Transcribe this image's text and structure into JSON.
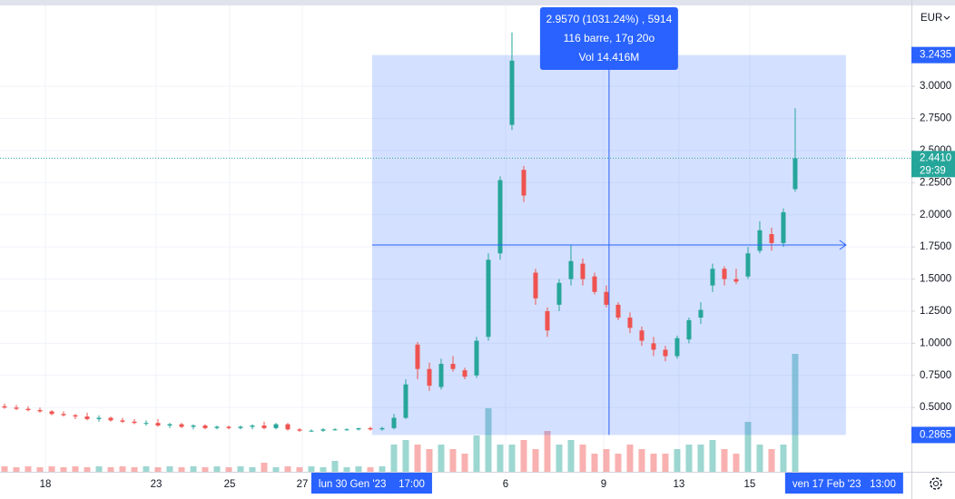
{
  "chart_data": {
    "type": "candlestick",
    "currency": "EUR",
    "x": [
      0,
      1,
      2,
      3,
      4,
      5,
      6,
      7,
      8,
      9,
      10,
      11,
      12,
      13,
      14,
      15,
      16,
      17,
      18,
      19,
      20,
      21,
      22,
      23,
      24,
      25,
      26,
      27,
      28,
      29,
      30,
      31,
      32,
      33,
      34,
      35,
      36,
      37,
      38,
      39,
      40,
      41,
      42,
      43,
      44,
      45,
      46,
      47,
      48,
      49,
      50,
      51,
      52,
      53,
      54,
      55,
      56,
      57,
      58,
      59,
      60,
      61,
      62,
      63,
      64,
      65,
      66,
      67
    ],
    "open": [
      0.51,
      0.5,
      0.49,
      0.48,
      0.47,
      0.45,
      0.44,
      0.43,
      0.41,
      0.42,
      0.4,
      0.39,
      0.38,
      0.38,
      0.36,
      0.37,
      0.35,
      0.36,
      0.34,
      0.35,
      0.34,
      0.35,
      0.36,
      0.34,
      0.37,
      0.33,
      0.32,
      0.32,
      0.33,
      0.33,
      0.33,
      0.34,
      0.33,
      0.34,
      0.42,
      0.99,
      0.8,
      0.66,
      0.84,
      0.79,
      0.75,
      1.05,
      1.7,
      2.7,
      2.35,
      1.55,
      1.25,
      1.3,
      1.5,
      1.62,
      1.52,
      1.4,
      1.3,
      1.2,
      1.1,
      1.0,
      0.95,
      0.9,
      1.03,
      1.2,
      1.45,
      1.58,
      1.5,
      1.52,
      1.72,
      1.85,
      1.78,
      2.2
    ],
    "high": [
      0.53,
      0.52,
      0.51,
      0.5,
      0.48,
      0.47,
      0.45,
      0.46,
      0.44,
      0.43,
      0.42,
      0.41,
      0.4,
      0.41,
      0.38,
      0.38,
      0.37,
      0.37,
      0.36,
      0.36,
      0.36,
      0.37,
      0.39,
      0.38,
      0.38,
      0.34,
      0.33,
      0.34,
      0.34,
      0.34,
      0.34,
      0.35,
      0.35,
      0.45,
      0.72,
      1.01,
      0.85,
      0.88,
      0.9,
      0.81,
      1.05,
      1.7,
      2.3,
      3.42,
      2.38,
      1.58,
      1.28,
      1.5,
      1.77,
      1.66,
      1.55,
      1.45,
      1.32,
      1.24,
      1.13,
      1.05,
      0.98,
      1.06,
      1.2,
      1.32,
      1.62,
      1.6,
      1.58,
      1.75,
      1.95,
      1.9,
      2.05,
      2.83
    ],
    "low": [
      0.49,
      0.48,
      0.47,
      0.46,
      0.44,
      0.43,
      0.41,
      0.4,
      0.39,
      0.39,
      0.38,
      0.37,
      0.36,
      0.35,
      0.34,
      0.34,
      0.33,
      0.33,
      0.33,
      0.33,
      0.33,
      0.33,
      0.33,
      0.33,
      0.32,
      0.31,
      0.31,
      0.31,
      0.32,
      0.32,
      0.32,
      0.32,
      0.32,
      0.33,
      0.41,
      0.72,
      0.63,
      0.64,
      0.78,
      0.72,
      0.73,
      1.02,
      1.65,
      2.66,
      2.1,
      1.3,
      1.05,
      1.25,
      1.45,
      1.45,
      1.38,
      1.28,
      1.18,
      1.08,
      0.98,
      0.9,
      0.86,
      0.88,
      1.0,
      1.15,
      1.4,
      1.45,
      1.46,
      1.5,
      1.7,
      1.72,
      1.75,
      2.18
    ],
    "close": [
      0.5,
      0.49,
      0.48,
      0.47,
      0.45,
      0.44,
      0.43,
      0.41,
      0.42,
      0.4,
      0.39,
      0.38,
      0.38,
      0.36,
      0.37,
      0.35,
      0.36,
      0.34,
      0.35,
      0.34,
      0.35,
      0.36,
      0.34,
      0.37,
      0.33,
      0.32,
      0.32,
      0.33,
      0.33,
      0.33,
      0.34,
      0.33,
      0.34,
      0.42,
      0.68,
      0.8,
      0.67,
      0.84,
      0.8,
      0.74,
      1.02,
      1.65,
      2.27,
      3.2,
      2.15,
      1.35,
      1.1,
      1.47,
      1.64,
      1.5,
      1.4,
      1.3,
      1.2,
      1.12,
      1.02,
      0.95,
      0.9,
      1.04,
      1.18,
      1.26,
      1.58,
      1.5,
      1.48,
      1.7,
      1.88,
      1.78,
      2.02,
      2.44
    ],
    "volume": [
      0.06,
      0.05,
      0.06,
      0.05,
      0.06,
      0.05,
      0.06,
      0.05,
      0.06,
      0.05,
      0.06,
      0.05,
      0.06,
      0.05,
      0.06,
      0.05,
      0.06,
      0.05,
      0.06,
      0.05,
      0.06,
      0.05,
      0.1,
      0.05,
      0.06,
      0.05,
      0.06,
      0.05,
      0.12,
      0.05,
      0.06,
      0.05,
      0.06,
      0.3,
      0.35,
      0.3,
      0.25,
      0.3,
      0.25,
      0.2,
      0.4,
      0.7,
      0.3,
      0.3,
      0.35,
      0.25,
      0.45,
      0.3,
      0.35,
      0.3,
      0.2,
      0.25,
      0.2,
      0.3,
      0.25,
      0.2,
      0.2,
      0.25,
      0.3,
      0.3,
      0.35,
      0.25,
      0.2,
      0.55,
      0.3,
      0.25,
      0.3,
      1.3
    ],
    "up_color": "#26a69a",
    "down_color": "#ef5350",
    "xlim": [
      -0.385,
      76.85
    ],
    "xticks": [
      {
        "value": 3.46,
        "label": "18"
      },
      {
        "value": 12.85,
        "label": "23"
      },
      {
        "value": 19.08,
        "label": "25"
      },
      {
        "value": 25.23,
        "label": "27"
      },
      {
        "value": 42.46,
        "label": "6"
      },
      {
        "value": 50.77,
        "label": "9"
      },
      {
        "value": 57.15,
        "label": "13"
      },
      {
        "value": 63.15,
        "label": "15"
      }
    ],
    "ylim": [
      0,
      3.672
    ],
    "yticks": [
      {
        "value": 0.5,
        "label": "0.5000"
      },
      {
        "value": 0.75,
        "label": "0.7500"
      },
      {
        "value": 1.0,
        "label": "1.0000"
      },
      {
        "value": 1.25,
        "label": "1.2500"
      },
      {
        "value": 1.5,
        "label": "1.5000"
      },
      {
        "value": 1.75,
        "label": "1.7500"
      },
      {
        "value": 2.0,
        "label": "2.0000"
      },
      {
        "value": 2.25,
        "label": "2.2500"
      },
      {
        "value": 2.5,
        "label": "2.5000"
      },
      {
        "value": 2.75,
        "label": "2.7500"
      },
      {
        "value": 3.0,
        "label": "3.0000"
      }
    ],
    "grid": true,
    "last_price": {
      "value": 2.441,
      "label": "2.4410",
      "countdown": "29:39"
    },
    "measure": {
      "high": 3.2435,
      "low": 0.2865,
      "start": {
        "value": 31.15,
        "date": "lun 30 Gen '23",
        "time": "17:00"
      },
      "end": {
        "value": 71.3,
        "date": "ven 17 Feb '23",
        "time": "13:00"
      },
      "summary": [
        "2.9570 (1031.24%) , 5914",
        "116 barre, 17g 20o",
        "Vol 14.416M"
      ]
    }
  }
}
